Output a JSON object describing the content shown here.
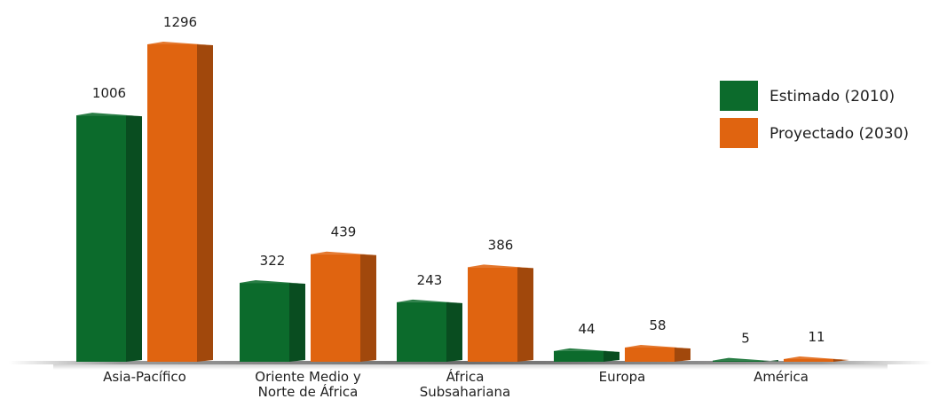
{
  "chart_data": {
    "type": "bar",
    "title": "",
    "xlabel": "",
    "ylabel": "",
    "ylim": [
      0,
      1296
    ],
    "grid": false,
    "legend_position": "top-right",
    "categories": [
      [
        "Asia-Pacífico"
      ],
      [
        "Oriente Medio y",
        "Norte de África"
      ],
      [
        "África",
        "Subsahariana"
      ],
      [
        "Europa"
      ],
      [
        "América"
      ]
    ],
    "series": [
      {
        "name": "Estimado (2010)",
        "color": "#0c6b2c",
        "values": [
          1006,
          322,
          243,
          44,
          5
        ]
      },
      {
        "name": "Proyectado (2030)",
        "color": "#e06410",
        "values": [
          1296,
          439,
          386,
          58,
          11
        ]
      }
    ]
  }
}
